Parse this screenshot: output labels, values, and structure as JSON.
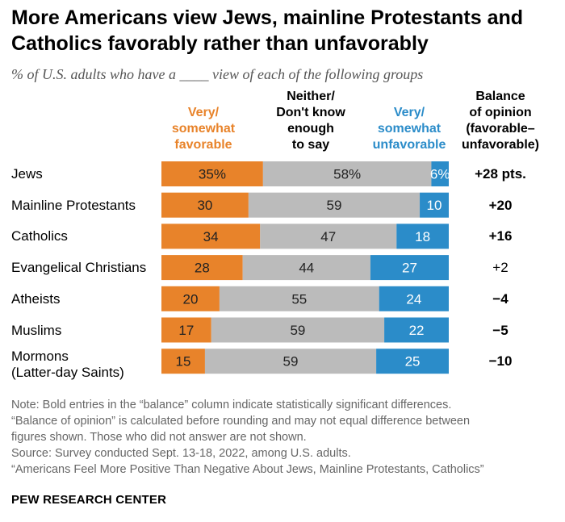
{
  "title_lines": [
    "More Americans view Jews, mainline Protestants and",
    "Catholics favorably rather than unfavorably"
  ],
  "subtitle": "% of U.S. adults who have a ____ view of each of the following groups",
  "headers": {
    "favorable": [
      "Very/",
      "somewhat",
      "favorable"
    ],
    "neither": [
      "Neither/",
      "Don't know",
      "enough",
      "to say"
    ],
    "unfavorable": [
      "Very/",
      "somewhat",
      "unfavorable"
    ],
    "balance": [
      "Balance",
      "of opinion",
      "(favorable–",
      "unfavorable)"
    ]
  },
  "colors": {
    "favorable": "#e8832a",
    "neither": "#bbbbbb",
    "unfavorable": "#2b8cc9",
    "title": "#000000",
    "note": "#666666"
  },
  "chart_data": {
    "type": "bar",
    "stacked": true,
    "orientation": "horizontal",
    "categories": [
      "Jews",
      "Mainline Protestants",
      "Catholics",
      "Evangelical Christians",
      "Atheists",
      "Muslims",
      "Mormons (Latter-day Saints)"
    ],
    "category_lines": [
      [
        "Jews"
      ],
      [
        "Mainline Protestants"
      ],
      [
        "Catholics"
      ],
      [
        "Evangelical Christians"
      ],
      [
        "Atheists"
      ],
      [
        "Muslims"
      ],
      [
        "Mormons",
        "(Latter-day Saints)"
      ]
    ],
    "series": [
      {
        "name": "Very/ somewhat favorable",
        "values": [
          35,
          30,
          34,
          28,
          20,
          17,
          15
        ],
        "labels": [
          "35%",
          "30",
          "34",
          "28",
          "20",
          "17",
          "15"
        ]
      },
      {
        "name": "Neither/ Don't know enough to say",
        "values": [
          58,
          59,
          47,
          44,
          55,
          59,
          59
        ],
        "labels": [
          "58%",
          "59",
          "47",
          "44",
          "55",
          "59",
          "59"
        ]
      },
      {
        "name": "Very/ somewhat unfavorable",
        "values": [
          6,
          10,
          18,
          27,
          24,
          22,
          25
        ],
        "labels": [
          "6%",
          "10",
          "18",
          "27",
          "24",
          "22",
          "25"
        ]
      }
    ],
    "balance": [
      "+28 pts.",
      "+20",
      "+16",
      "+2",
      "−4",
      "−5",
      "−10"
    ],
    "balance_bold": [
      true,
      true,
      true,
      false,
      true,
      true,
      true
    ]
  },
  "notes": [
    "Note: Bold entries in the “balance” column indicate statistically significant differences.",
    "“Balance of opinion” is calculated before rounding and may not equal difference between",
    "figures shown. Those who did not answer are not shown.",
    "Source: Survey conducted Sept. 13-18, 2022, among U.S. adults.",
    "“Americans Feel More Positive Than Negative About Jews, Mainline Protestants, Catholics”"
  ],
  "source_org": "PEW RESEARCH CENTER"
}
